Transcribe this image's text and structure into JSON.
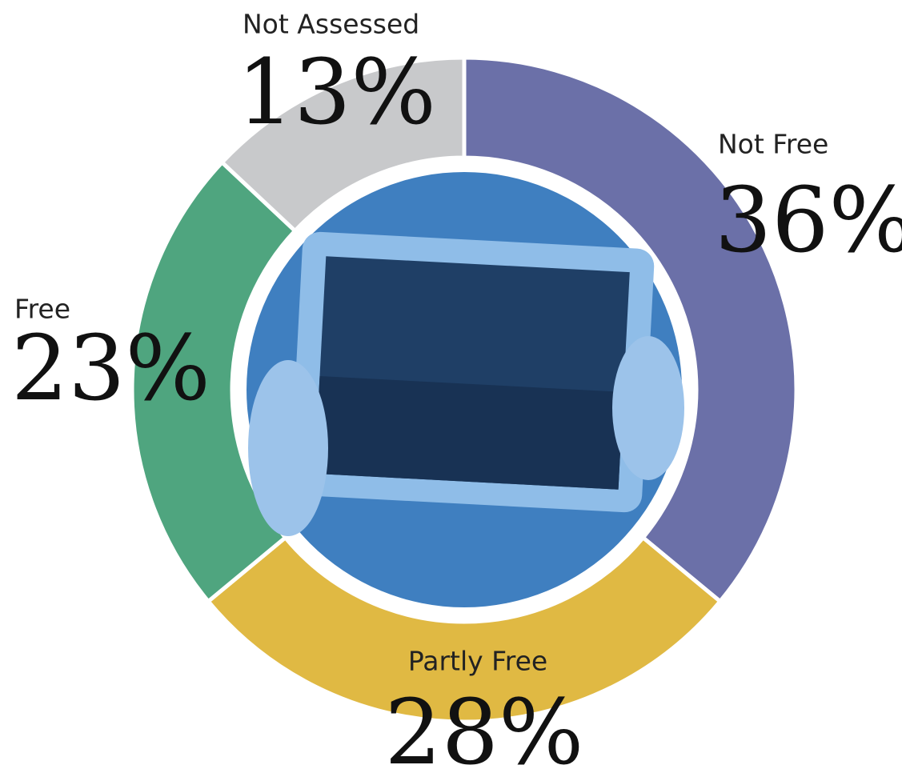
{
  "chart_data": {
    "type": "donut",
    "categories": [
      "Not Free",
      "Partly Free",
      "Free",
      "Not Assessed"
    ],
    "values": [
      36,
      28,
      23,
      13
    ],
    "value_labels": [
      "36%",
      "28%",
      "23%",
      "13%"
    ],
    "colors": [
      "#6b70a8",
      "#e0b943",
      "#4fa57f",
      "#c8c9cb"
    ]
  }
}
